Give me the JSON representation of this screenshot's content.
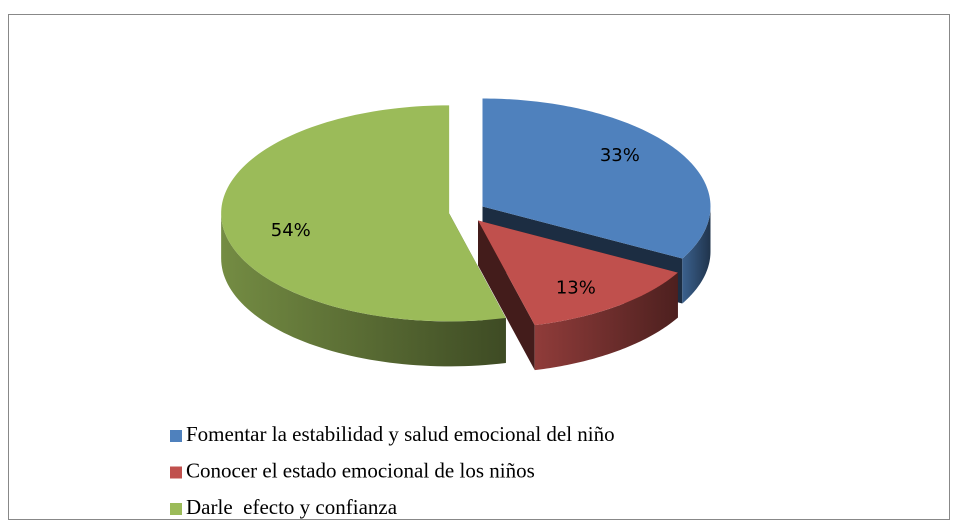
{
  "chart_data": {
    "type": "pie",
    "categories": [
      "Fomentar la estabilidad y salud emocional del niño",
      "Conocer el estado emocional de los niños",
      "Darle  efecto y confianza"
    ],
    "values": [
      33,
      13,
      54
    ],
    "value_labels": [
      "33%",
      "13%",
      "54%"
    ],
    "colors": [
      "#4f81bd",
      "#c0504d",
      "#9bbb59"
    ],
    "legend": "bottom"
  }
}
